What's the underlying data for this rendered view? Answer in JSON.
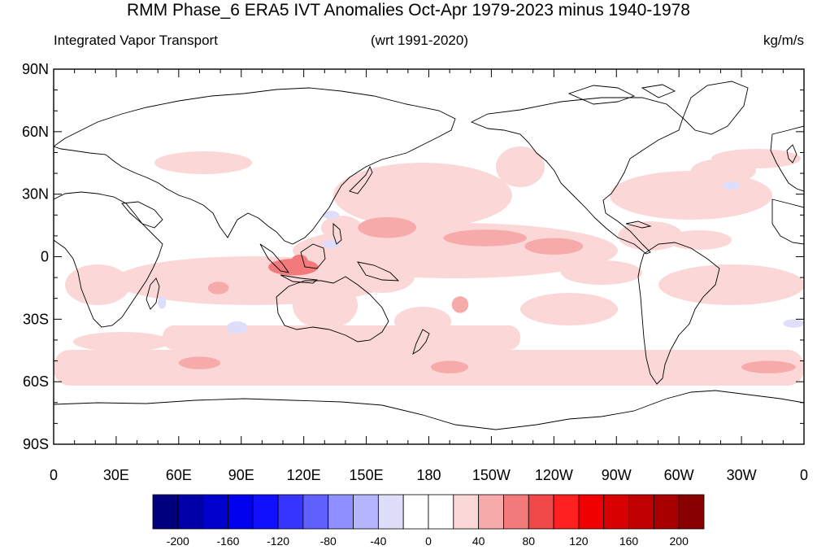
{
  "figure": {
    "title": "RMM Phase_6 ERA5 IVT Anomalies Oct-Apr 1979-2023 minus 1940-1978",
    "left_label": "Integrated Vapor Transport",
    "center_label": "(wrt 1991-2020)",
    "right_label": "kg/m/s"
  },
  "axes": {
    "lat_ticks": [
      "90N",
      "60N",
      "30N",
      "0",
      "30S",
      "60S",
      "90S"
    ],
    "lon_ticks": [
      "0",
      "30E",
      "60E",
      "90E",
      "120E",
      "150E",
      "180",
      "150W",
      "120W",
      "90W",
      "60W",
      "30W",
      "0"
    ]
  },
  "colorbar": {
    "colors": [
      "#00007f",
      "#0000a8",
      "#0000cc",
      "#0000ee",
      "#1010ff",
      "#3535ff",
      "#6060ff",
      "#8f8fff",
      "#b5b5ff",
      "#dedefa",
      "#ffffff",
      "#ffffff",
      "#fbd7d7",
      "#f7aaaa",
      "#f27a7a",
      "#f04747",
      "#ff2020",
      "#f00000",
      "#d80000",
      "#c00000",
      "#a80000",
      "#880000"
    ],
    "labels": [
      "-200",
      "-160",
      "-120",
      "-80",
      "-40",
      "0",
      "40",
      "80",
      "120",
      "160",
      "200"
    ]
  },
  "map_data": {
    "type": "filled-contour",
    "variable": "IVT anomaly",
    "projection": "cylindrical equidistant",
    "lon_range": [
      0,
      360
    ],
    "lat_range": [
      -90,
      90
    ],
    "colors": {
      "land_outline": "#000000",
      "light_pos": "#fbd7d7",
      "mid_pos": "#f7aaaa",
      "strong_pos": "#f27a7a",
      "light_neg": "#dedefa"
    },
    "blobs": [
      {
        "lon": 160,
        "lat": 14,
        "rlon": 14,
        "rlat": 5,
        "level": 1
      },
      {
        "lon": 207,
        "lat": 9,
        "rlon": 20,
        "rlat": 4,
        "level": 2
      },
      {
        "lon": 240,
        "lat": 5,
        "rlon": 14,
        "rlat": 4,
        "level": 2
      },
      {
        "lon": 115,
        "lat": -5,
        "rlon": 12,
        "rlat": 4,
        "level": 3
      },
      {
        "lon": 118,
        "lat": -2,
        "rlon": 4,
        "rlat": 3,
        "level": 3
      },
      {
        "lon": 79,
        "lat": -15,
        "rlon": 5,
        "rlat": 3,
        "level": 2
      },
      {
        "lon": 195,
        "lat": -23,
        "rlon": 4,
        "rlat": 4,
        "level": 2
      },
      {
        "lon": 190,
        "lat": -53,
        "rlon": 9,
        "rlat": 3,
        "level": 2
      },
      {
        "lon": 343,
        "lat": -53,
        "rlon": 13,
        "rlat": 3,
        "level": 2
      },
      {
        "lon": 70,
        "lat": -51,
        "rlon": 10,
        "rlat": 3,
        "level": 2
      }
    ],
    "negative_blobs": [
      {
        "lon": 133,
        "lat": 20,
        "rlon": 4,
        "rlat": 2
      },
      {
        "lon": 133,
        "lat": 6,
        "rlon": 4,
        "rlat": 2
      },
      {
        "lon": 88,
        "lat": -34,
        "rlon": 5,
        "rlat": 3
      },
      {
        "lon": 325,
        "lat": 34,
        "rlon": 4,
        "rlat": 2
      },
      {
        "lon": 52,
        "lat": -22,
        "rlon": 2,
        "rlat": 3
      },
      {
        "lon": 355,
        "lat": -32,
        "rlon": 5,
        "rlat": 2
      }
    ]
  }
}
